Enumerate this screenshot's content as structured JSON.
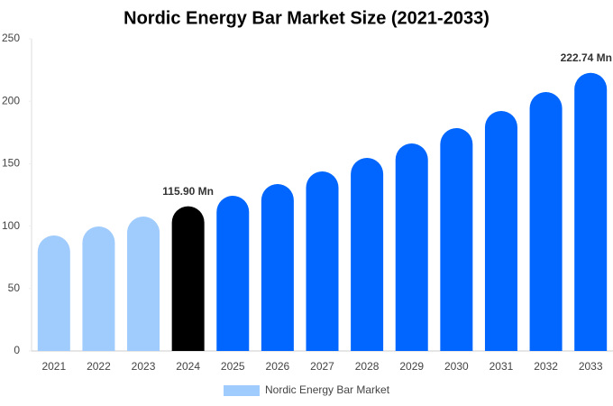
{
  "chart_data": {
    "type": "bar",
    "title": "Nordic Energy Bar Market Size (2021-2033)",
    "categories": [
      "2021",
      "2022",
      "2023",
      "2024",
      "2025",
      "2026",
      "2027",
      "2028",
      "2029",
      "2030",
      "2031",
      "2032",
      "2033"
    ],
    "series": [
      {
        "name": "Nordic Energy Bar Market",
        "color": "#a0cbfd",
        "colors": [
          "#a0cbfd",
          "#a0cbfd",
          "#a0cbfd",
          "#000000",
          "#0066ff",
          "#0066ff",
          "#0066ff",
          "#0066ff",
          "#0066ff",
          "#0066ff",
          "#0066ff",
          "#0066ff",
          "#0066ff"
        ],
        "values": [
          92.5,
          99.7,
          107.7,
          115.9,
          124.3,
          133.7,
          143.8,
          154.6,
          166.2,
          178.5,
          192.2,
          207.4,
          222.74
        ],
        "value_labels": [
          null,
          null,
          null,
          "115.90 Mn",
          null,
          null,
          null,
          null,
          null,
          null,
          null,
          null,
          "222.74 Mn"
        ]
      }
    ],
    "ylim": [
      0,
      250
    ],
    "yticks": [
      0,
      50,
      100,
      150,
      200,
      250
    ],
    "grid": false,
    "legend": "bottom"
  }
}
